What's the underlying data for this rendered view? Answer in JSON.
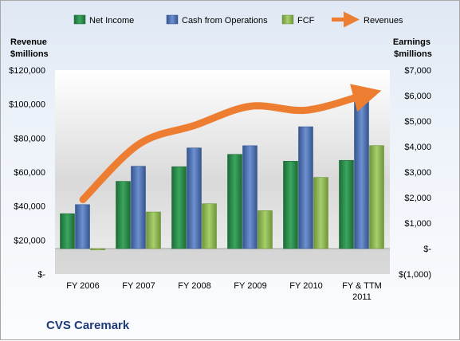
{
  "chart_data": {
    "type": "bar",
    "company": "CVS Caremark",
    "categories": [
      "FY 2006",
      "FY 2007",
      "FY 2008",
      "FY 2009",
      "FY 2010",
      "FY & TTM\n2011"
    ],
    "left_axis": {
      "title": "Revenue\n$millions",
      "ylim": [
        0,
        120000
      ],
      "ticks": [
        0,
        20000,
        40000,
        60000,
        80000,
        100000,
        120000
      ],
      "tick_labels": [
        "$-",
        "$20,000",
        "$40,000",
        "$60,000",
        "$80,000",
        "$100,000",
        "$120,000"
      ]
    },
    "right_axis": {
      "title": "Earnings\n$millions",
      "ylim": [
        -1000,
        7000
      ],
      "ticks": [
        -1000,
        0,
        1000,
        2000,
        3000,
        4000,
        5000,
        6000,
        7000
      ],
      "tick_labels": [
        "$(1,000)",
        "$-",
        "$1,000",
        "$2,000",
        "$3,000",
        "$4,000",
        "$5,000",
        "$6,000",
        "$7,000"
      ]
    },
    "series": [
      {
        "name": "Net Income",
        "kind": "bar",
        "axis": "right",
        "color": "#2e8b4e",
        "values": [
          1369,
          2637,
          3212,
          3696,
          3427,
          3461
        ]
      },
      {
        "name": "Cash from Operations",
        "kind": "bar",
        "axis": "right",
        "color": "#4f73b8",
        "values": [
          1725,
          3229,
          3947,
          4035,
          4779,
          5858
        ]
      },
      {
        "name": "FCF",
        "kind": "bar",
        "axis": "right",
        "color": "#8fbb52",
        "values": [
          -50,
          1436,
          1760,
          1487,
          2792,
          4040
        ]
      },
      {
        "name": "Revenues",
        "kind": "line",
        "axis": "left",
        "color": "#ed7d31",
        "values": [
          43814,
          76330,
          87472,
          98729,
          96413,
          105000
        ]
      }
    ],
    "legend_position": "top",
    "grid": false
  }
}
